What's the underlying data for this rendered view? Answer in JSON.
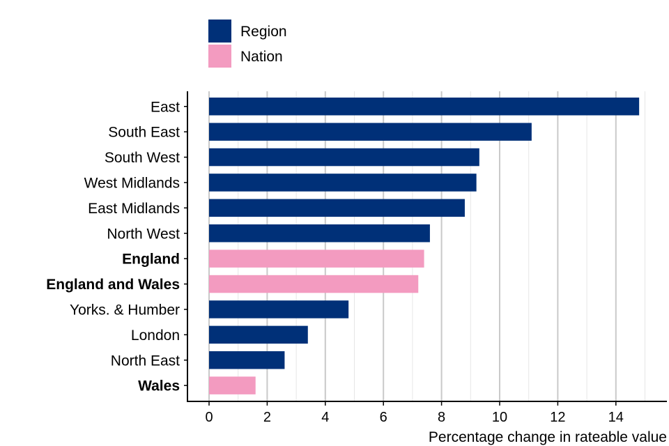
{
  "chart_data": {
    "type": "bar",
    "orientation": "horizontal",
    "title": "",
    "xlabel": "Percentage change in rateable value",
    "ylabel": "",
    "xlim": [
      -0.75,
      15.5
    ],
    "xticks": [
      0,
      2,
      4,
      6,
      8,
      10,
      12,
      14
    ],
    "grid": true,
    "legend_position": "top-left",
    "legend": [
      {
        "name": "Region",
        "color": "#003078"
      },
      {
        "name": "Nation",
        "color": "#f39bc0"
      }
    ],
    "categories": [
      "East",
      "South East",
      "South West",
      "West Midlands",
      "East Midlands",
      "North West",
      "England",
      "England and Wales",
      "Yorks. & Humber",
      "London",
      "North East",
      "Wales"
    ],
    "values": [
      14.8,
      11.1,
      9.3,
      9.2,
      8.8,
      7.6,
      7.4,
      7.2,
      4.8,
      3.4,
      2.6,
      1.6
    ],
    "groups": [
      "Region",
      "Region",
      "Region",
      "Region",
      "Region",
      "Region",
      "Nation",
      "Nation",
      "Region",
      "Region",
      "Region",
      "Nation"
    ]
  }
}
